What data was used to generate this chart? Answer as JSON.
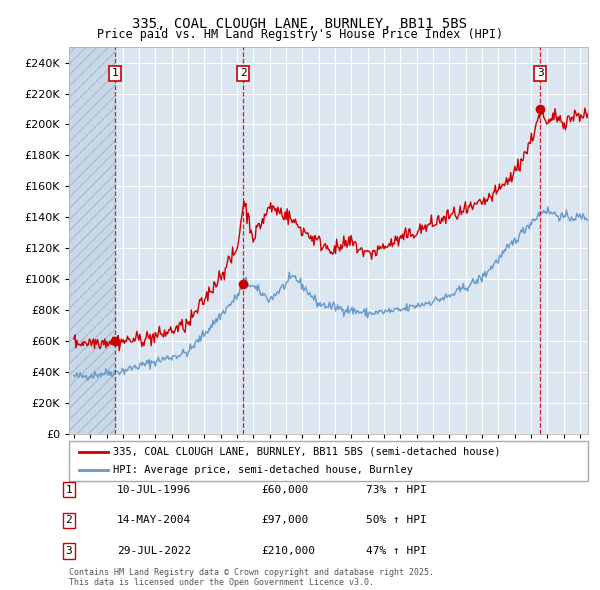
{
  "title": "335, COAL CLOUGH LANE, BURNLEY, BB11 5BS",
  "subtitle": "Price paid vs. HM Land Registry's House Price Index (HPI)",
  "legend_line1": "335, COAL CLOUGH LANE, BURNLEY, BB11 5BS (semi-detached house)",
  "legend_line2": "HPI: Average price, semi-detached house, Burnley",
  "footer": "Contains HM Land Registry data © Crown copyright and database right 2025.\nThis data is licensed under the Open Government Licence v3.0.",
  "sale_annotations": [
    {
      "num": "1",
      "date": "10-JUL-1996",
      "price": "£60,000",
      "hpi": "73% ↑ HPI",
      "x_year": 1996.53
    },
    {
      "num": "2",
      "date": "14-MAY-2004",
      "price": "£97,000",
      "hpi": "50% ↑ HPI",
      "x_year": 2004.37
    },
    {
      "num": "3",
      "date": "29-JUL-2022",
      "price": "£210,000",
      "hpi": "47% ↑ HPI",
      "x_year": 2022.58
    }
  ],
  "sale_prices": [
    60000,
    97000,
    210000
  ],
  "sale_years": [
    1996.53,
    2004.37,
    2022.58
  ],
  "red_color": "#cc0000",
  "blue_color": "#6699cc",
  "bg_color": "#dce6f1",
  "grid_color": "#ffffff",
  "ylim": [
    0,
    250000
  ],
  "yticks": [
    0,
    20000,
    40000,
    60000,
    80000,
    100000,
    120000,
    140000,
    160000,
    180000,
    200000,
    220000,
    240000
  ],
  "xlim_start": 1993.7,
  "xlim_end": 2025.5
}
